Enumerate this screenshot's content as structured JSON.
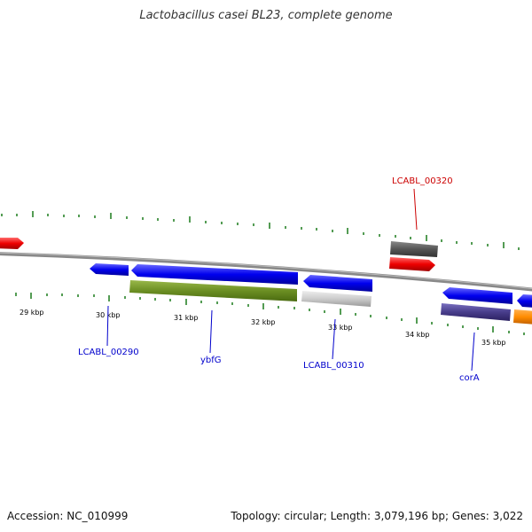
{
  "title": "Lactobacillus casei BL23, complete genome",
  "footer": {
    "accession": "Accession: NC_010999",
    "summary": "Topology: circular; Length: 3,079,196 bp; Genes: 3,022"
  },
  "map": {
    "tick_labels": [
      "29 kbp",
      "30 kbp",
      "31 kbp",
      "32 kbp",
      "33 kbp",
      "34 kbp",
      "35 kbp"
    ],
    "gene_labels": [
      {
        "text": "LCABL_00320",
        "color": "#cc0000"
      },
      {
        "text": "LCABL_00290",
        "color": "#0000cc"
      },
      {
        "text": "ybfG",
        "color": "#0000cc"
      },
      {
        "text": "LCABL_00310",
        "color": "#0000cc"
      },
      {
        "text": "corA",
        "color": "#0000cc"
      }
    ],
    "colors": {
      "forward_cds": "#0000ee",
      "reverse_cds": "#ee0000",
      "backbone": "#888888",
      "gc_ticks": "#1a7a1a",
      "ybfG_feature": "#6b8e23",
      "grey_feature": "#cccccc",
      "dark_grey_feature": "#555555",
      "purple_feature": "#483d8b",
      "orange_feature": "#ff8c00"
    }
  }
}
